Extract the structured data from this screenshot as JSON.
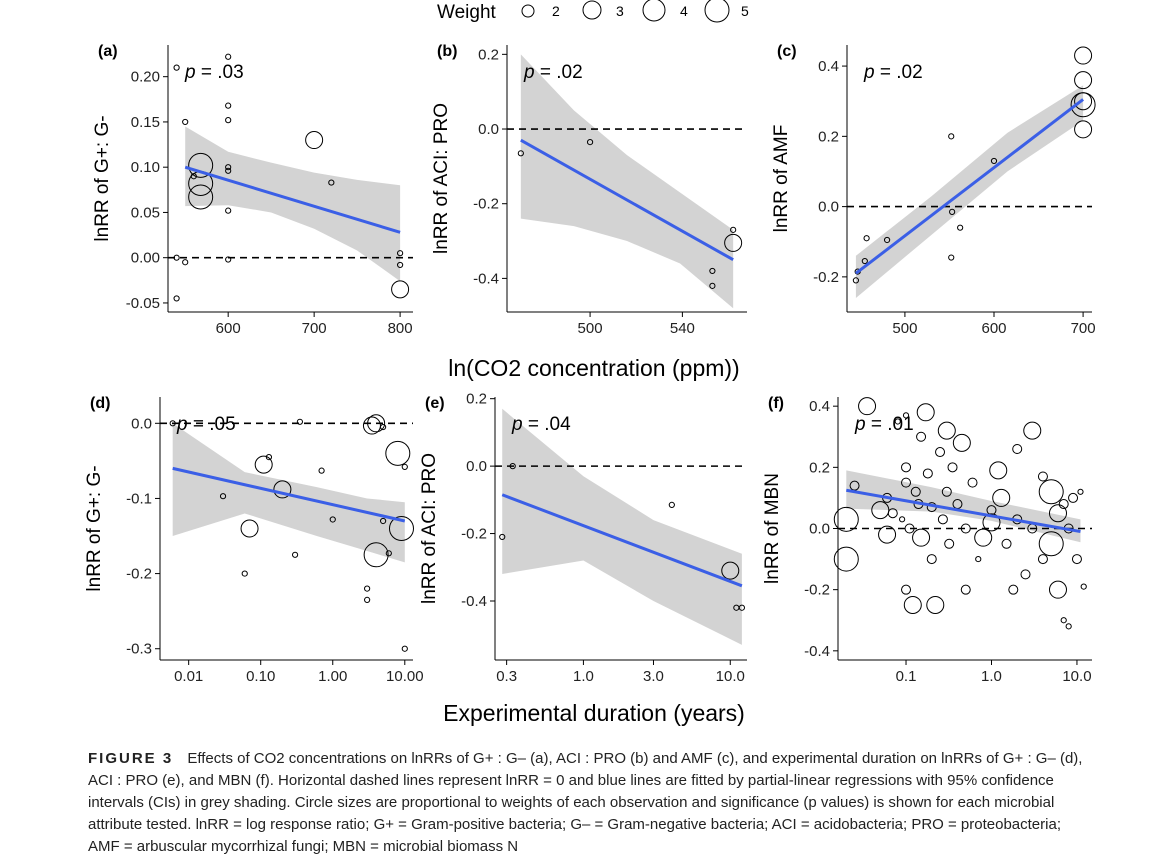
{
  "legend": {
    "title": "Weight",
    "items": [
      "2",
      "3",
      "4",
      "5"
    ]
  },
  "shared_axis_labels": {
    "top_x": "ln(CO2 concentration (ppm))",
    "bottom_x": "Experimental duration (years)"
  },
  "caption": {
    "lead": "FIGURE 3",
    "text": "Effects of CO2 concentrations on lnRRs of G+ : G– (a), ACI : PRO (b) and AMF (c), and experimental duration on lnRRs of G+ : G– (d), ACI : PRO (e), and MBN (f). Horizontal dashed lines represent lnRR = 0 and blue lines are fitted by partial-linear regressions with 95% confidence intervals (CIs) in grey shading. Circle sizes are proportional to weights of each observation and significance (p values) is shown for each microbial attribute tested. lnRR = log response ratio; G+ = Gram-positive bacteria; G– = Gram-negative bacteria; ACI = acidobacteria; PRO = proteobacteria; AMF = arbuscular mycorrhizal fungi; MBN = microbial biomass N"
  },
  "colors": {
    "fit_line": "#3b5fe6",
    "ci_band": "#d3d3d3",
    "points": "#000000",
    "zero_line": "#000000"
  },
  "chart_data": [
    {
      "type": "scatter",
      "panel": "(a)",
      "ylabel": "lnRR of G+: G-",
      "pval": "p = .03",
      "xscale": "linear",
      "xlim": [
        530,
        815
      ],
      "ylim": [
        -0.06,
        0.235
      ],
      "xticks": [
        600,
        700,
        800
      ],
      "xticklabels": [
        "600",
        "700",
        "800"
      ],
      "yticks": [
        -0.05,
        0,
        0.05,
        0.1,
        0.15,
        0.2
      ],
      "yticklabels": [
        "-0.05",
        "0.00",
        "0.05",
        "0.10",
        "0.15",
        "0.20"
      ],
      "fit": {
        "x": [
          550,
          800
        ],
        "y": [
          0.1,
          0.028
        ]
      },
      "ci": {
        "x": [
          550,
          600,
          650,
          700,
          750,
          800
        ],
        "upper": [
          0.145,
          0.117,
          0.105,
          0.094,
          0.086,
          0.08
        ],
        "lower": [
          0.057,
          0.058,
          0.05,
          0.032,
          0.008,
          -0.026
        ]
      },
      "points": [
        [
          540,
          0.21,
          1
        ],
        [
          550,
          0.15,
          1
        ],
        [
          560,
          0.09,
          1
        ],
        [
          568,
          0.102,
          4
        ],
        [
          568,
          0.082,
          4
        ],
        [
          568,
          0.067,
          4
        ],
        [
          600,
          0.222,
          1
        ],
        [
          600,
          0.168,
          1
        ],
        [
          600,
          0.152,
          1
        ],
        [
          600,
          0.1,
          1
        ],
        [
          600,
          0.096,
          1
        ],
        [
          600,
          0.052,
          1
        ],
        [
          600,
          -0.002,
          1
        ],
        [
          540,
          -0.045,
          1
        ],
        [
          540,
          0.0,
          1
        ],
        [
          550,
          -0.005,
          1
        ],
        [
          700,
          0.13,
          3
        ],
        [
          720,
          0.083,
          1
        ],
        [
          800,
          0.005,
          1
        ],
        [
          800,
          -0.008,
          1
        ],
        [
          800,
          -0.035,
          3
        ]
      ]
    },
    {
      "type": "scatter",
      "panel": "(b)",
      "ylabel": "lnRR of ACI: PRO",
      "pval": "p = .02",
      "xscale": "linear",
      "xlim": [
        464,
        568
      ],
      "ylim": [
        -0.49,
        0.225
      ],
      "xticks": [
        500,
        540
      ],
      "xticklabels": [
        "500",
        "540"
      ],
      "yticks": [
        -0.4,
        -0.2,
        0,
        0.2
      ],
      "yticklabels": [
        "-0.4",
        "-0.2",
        "0.0",
        "0.2"
      ],
      "fit": {
        "x": [
          470,
          562
        ],
        "y": [
          -0.03,
          -0.35
        ]
      },
      "ci": {
        "x": [
          470,
          493,
          516,
          539,
          562
        ],
        "upper": [
          0.2,
          0.05,
          -0.07,
          -0.17,
          -0.27
        ],
        "lower": [
          -0.24,
          -0.26,
          -0.3,
          -0.36,
          -0.48
        ]
      },
      "points": [
        [
          470,
          -0.065,
          1
        ],
        [
          500,
          -0.035,
          1
        ],
        [
          553,
          -0.38,
          1
        ],
        [
          553,
          -0.42,
          1
        ],
        [
          562,
          -0.27,
          1
        ],
        [
          562,
          -0.305,
          3
        ]
      ]
    },
    {
      "type": "scatter",
      "panel": "(c)",
      "ylabel": "lnRR of AMF",
      "pval": "p = .02",
      "xscale": "linear",
      "xlim": [
        435,
        710
      ],
      "ylim": [
        -0.3,
        0.46
      ],
      "xticks": [
        500,
        600,
        700
      ],
      "xticklabels": [
        "500",
        "600",
        "700"
      ],
      "yticks": [
        -0.2,
        0,
        0.2,
        0.4
      ],
      "yticklabels": [
        "-0.2",
        "0.0",
        "0.2",
        "0.4"
      ],
      "fit": {
        "x": [
          445,
          700
        ],
        "y": [
          -0.19,
          0.305
        ]
      },
      "ci": {
        "x": [
          445,
          530,
          615,
          700
        ],
        "upper": [
          -0.14,
          0.03,
          0.21,
          0.345
        ],
        "lower": [
          -0.26,
          -0.08,
          0.1,
          0.245
        ]
      },
      "points": [
        [
          445,
          -0.21,
          1
        ],
        [
          447,
          -0.185,
          1
        ],
        [
          455,
          -0.155,
          1
        ],
        [
          457,
          -0.09,
          1
        ],
        [
          480,
          -0.095,
          1
        ],
        [
          552,
          0.2,
          1
        ],
        [
          553,
          -0.015,
          1
        ],
        [
          552,
          -0.145,
          1
        ],
        [
          562,
          -0.06,
          1
        ],
        [
          600,
          0.13,
          1
        ],
        [
          700,
          0.43,
          3
        ],
        [
          700,
          0.36,
          3
        ],
        [
          700,
          0.3,
          3
        ],
        [
          700,
          0.29,
          4
        ],
        [
          700,
          0.22,
          3
        ]
      ]
    },
    {
      "type": "scatter",
      "panel": "(d)",
      "ylabel": "lnRR of G+: G-",
      "pval": "p = .05",
      "xscale": "log",
      "xlim": [
        0.004,
        13
      ],
      "ylim": [
        -0.315,
        0.035
      ],
      "xticks": [
        0.01,
        0.1,
        1,
        10
      ],
      "xticklabels": [
        "0.01",
        "0.10",
        "1.00",
        "10.00"
      ],
      "yticks": [
        -0.3,
        -0.2,
        -0.1,
        0
      ],
      "yticklabels": [
        "-0.3",
        "-0.2",
        "-0.1",
        "0.0"
      ],
      "fit": {
        "x": [
          0.006,
          10
        ],
        "y": [
          -0.06,
          -0.13
        ]
      },
      "ci": {
        "x": [
          0.006,
          0.06,
          0.6,
          3,
          10
        ],
        "upper": [
          -0.0,
          -0.065,
          -0.085,
          -0.1,
          -0.105
        ],
        "lower": [
          -0.15,
          -0.12,
          -0.15,
          -0.17,
          -0.185
        ]
      },
      "points": [
        [
          0.006,
          0.0,
          1
        ],
        [
          0.03,
          -0.097,
          1
        ],
        [
          0.06,
          -0.2,
          1
        ],
        [
          0.07,
          -0.14,
          3
        ],
        [
          0.11,
          -0.055,
          3
        ],
        [
          0.13,
          -0.045,
          1
        ],
        [
          0.2,
          -0.088,
          3
        ],
        [
          0.3,
          -0.175,
          1
        ],
        [
          0.35,
          0.002,
          1
        ],
        [
          0.7,
          -0.063,
          1
        ],
        [
          1.0,
          -0.128,
          1
        ],
        [
          3,
          -0.22,
          1
        ],
        [
          3,
          -0.235,
          1
        ],
        [
          3.5,
          -0.003,
          3
        ],
        [
          4,
          0.0,
          3
        ],
        [
          4,
          -0.175,
          4
        ],
        [
          5,
          -0.13,
          1
        ],
        [
          5,
          -0.005,
          1
        ],
        [
          6,
          -0.173,
          1
        ],
        [
          8,
          -0.04,
          4
        ],
        [
          9,
          -0.14,
          4
        ],
        [
          10,
          -0.058,
          1
        ],
        [
          10,
          -0.3,
          1
        ]
      ]
    },
    {
      "type": "scatter",
      "panel": "(e)",
      "ylabel": "lnRR of ACI: PRO",
      "pval": "p = .04",
      "xscale": "log",
      "xlim": [
        0.25,
        13
      ],
      "ylim": [
        -0.575,
        0.205
      ],
      "xticks": [
        0.3,
        1,
        3,
        10
      ],
      "xticklabels": [
        "0.3",
        "1.0",
        "3.0",
        "10.0"
      ],
      "yticks": [
        -0.4,
        -0.2,
        0,
        0.2
      ],
      "yticklabels": [
        "-0.4",
        "-0.2",
        "0.0",
        "0.2"
      ],
      "fit": {
        "x": [
          0.28,
          12
        ],
        "y": [
          -0.085,
          -0.355
        ]
      },
      "ci": {
        "x": [
          0.28,
          1,
          3,
          12
        ],
        "upper": [
          0.17,
          -0.03,
          -0.16,
          -0.26
        ],
        "lower": [
          -0.32,
          -0.28,
          -0.4,
          -0.53
        ]
      },
      "points": [
        [
          0.28,
          -0.21,
          1
        ],
        [
          0.33,
          0.0,
          1
        ],
        [
          4,
          -0.115,
          1
        ],
        [
          10,
          -0.31,
          3
        ],
        [
          11,
          -0.42,
          1
        ],
        [
          12,
          -0.42,
          1
        ]
      ]
    },
    {
      "type": "scatter",
      "panel": "(f)",
      "ylabel": "lnRR of MBN",
      "pval": "p = .01",
      "xscale": "log",
      "xlim": [
        0.016,
        15
      ],
      "ylim": [
        -0.43,
        0.43
      ],
      "xticks": [
        0.1,
        1,
        10
      ],
      "xticklabels": [
        "0.1",
        "1.0",
        "10.0"
      ],
      "yticks": [
        -0.4,
        -0.2,
        0,
        0.2,
        0.4
      ],
      "yticklabels": [
        "-0.4",
        "-0.2",
        "0.0",
        "0.2",
        "0.4"
      ],
      "fit": {
        "x": [
          0.02,
          11
        ],
        "y": [
          0.125,
          -0.01
        ]
      },
      "ci": {
        "x": [
          0.02,
          0.2,
          1,
          11
        ],
        "upper": [
          0.19,
          0.135,
          0.09,
          0.03
        ],
        "lower": [
          0.065,
          0.055,
          0.025,
          -0.045
        ]
      },
      "points": [
        [
          0.02,
          0.03,
          4
        ],
        [
          0.02,
          -0.1,
          4
        ],
        [
          0.025,
          0.14,
          2
        ],
        [
          0.035,
          0.4,
          3
        ],
        [
          0.05,
          0.06,
          3
        ],
        [
          0.06,
          0.1,
          2
        ],
        [
          0.06,
          -0.02,
          3
        ],
        [
          0.07,
          0.05,
          2
        ],
        [
          0.08,
          0.35,
          1
        ],
        [
          0.09,
          0.03,
          1
        ],
        [
          0.1,
          0.37,
          1
        ],
        [
          0.1,
          0.2,
          2
        ],
        [
          0.1,
          0.15,
          2
        ],
        [
          0.1,
          -0.2,
          2
        ],
        [
          0.11,
          0.0,
          2
        ],
        [
          0.12,
          -0.25,
          3
        ],
        [
          0.13,
          0.12,
          2
        ],
        [
          0.14,
          0.08,
          2
        ],
        [
          0.15,
          0.3,
          2
        ],
        [
          0.15,
          -0.03,
          3
        ],
        [
          0.17,
          0.38,
          3
        ],
        [
          0.18,
          0.18,
          2
        ],
        [
          0.2,
          0.07,
          2
        ],
        [
          0.2,
          -0.1,
          2
        ],
        [
          0.22,
          -0.25,
          3
        ],
        [
          0.25,
          0.25,
          2
        ],
        [
          0.27,
          0.03,
          2
        ],
        [
          0.3,
          0.32,
          3
        ],
        [
          0.3,
          0.12,
          2
        ],
        [
          0.32,
          -0.05,
          2
        ],
        [
          0.35,
          0.2,
          2
        ],
        [
          0.4,
          0.08,
          2
        ],
        [
          0.45,
          0.28,
          3
        ],
        [
          0.5,
          0.0,
          2
        ],
        [
          0.5,
          -0.2,
          2
        ],
        [
          0.6,
          0.15,
          2
        ],
        [
          0.7,
          -0.1,
          1
        ],
        [
          0.8,
          -0.03,
          3
        ],
        [
          1.0,
          0.06,
          2
        ],
        [
          1.0,
          0.02,
          3
        ],
        [
          1.2,
          0.19,
          3
        ],
        [
          1.3,
          0.1,
          3
        ],
        [
          1.5,
          -0.05,
          2
        ],
        [
          1.8,
          -0.2,
          2
        ],
        [
          2,
          0.03,
          2
        ],
        [
          2,
          0.26,
          2
        ],
        [
          2.5,
          -0.15,
          2
        ],
        [
          3,
          0.32,
          3
        ],
        [
          3,
          0.0,
          2
        ],
        [
          4,
          0.17,
          2
        ],
        [
          4,
          -0.1,
          2
        ],
        [
          5,
          0.12,
          4
        ],
        [
          5,
          -0.05,
          4
        ],
        [
          6,
          0.05,
          3
        ],
        [
          6,
          -0.2,
          3
        ],
        [
          7,
          0.08,
          2
        ],
        [
          7,
          -0.3,
          1
        ],
        [
          8,
          0.0,
          2
        ],
        [
          8,
          -0.32,
          1
        ],
        [
          9,
          0.1,
          2
        ],
        [
          10,
          -0.1,
          2
        ],
        [
          11,
          0.12,
          1
        ],
        [
          12,
          -0.19,
          1
        ]
      ]
    }
  ]
}
